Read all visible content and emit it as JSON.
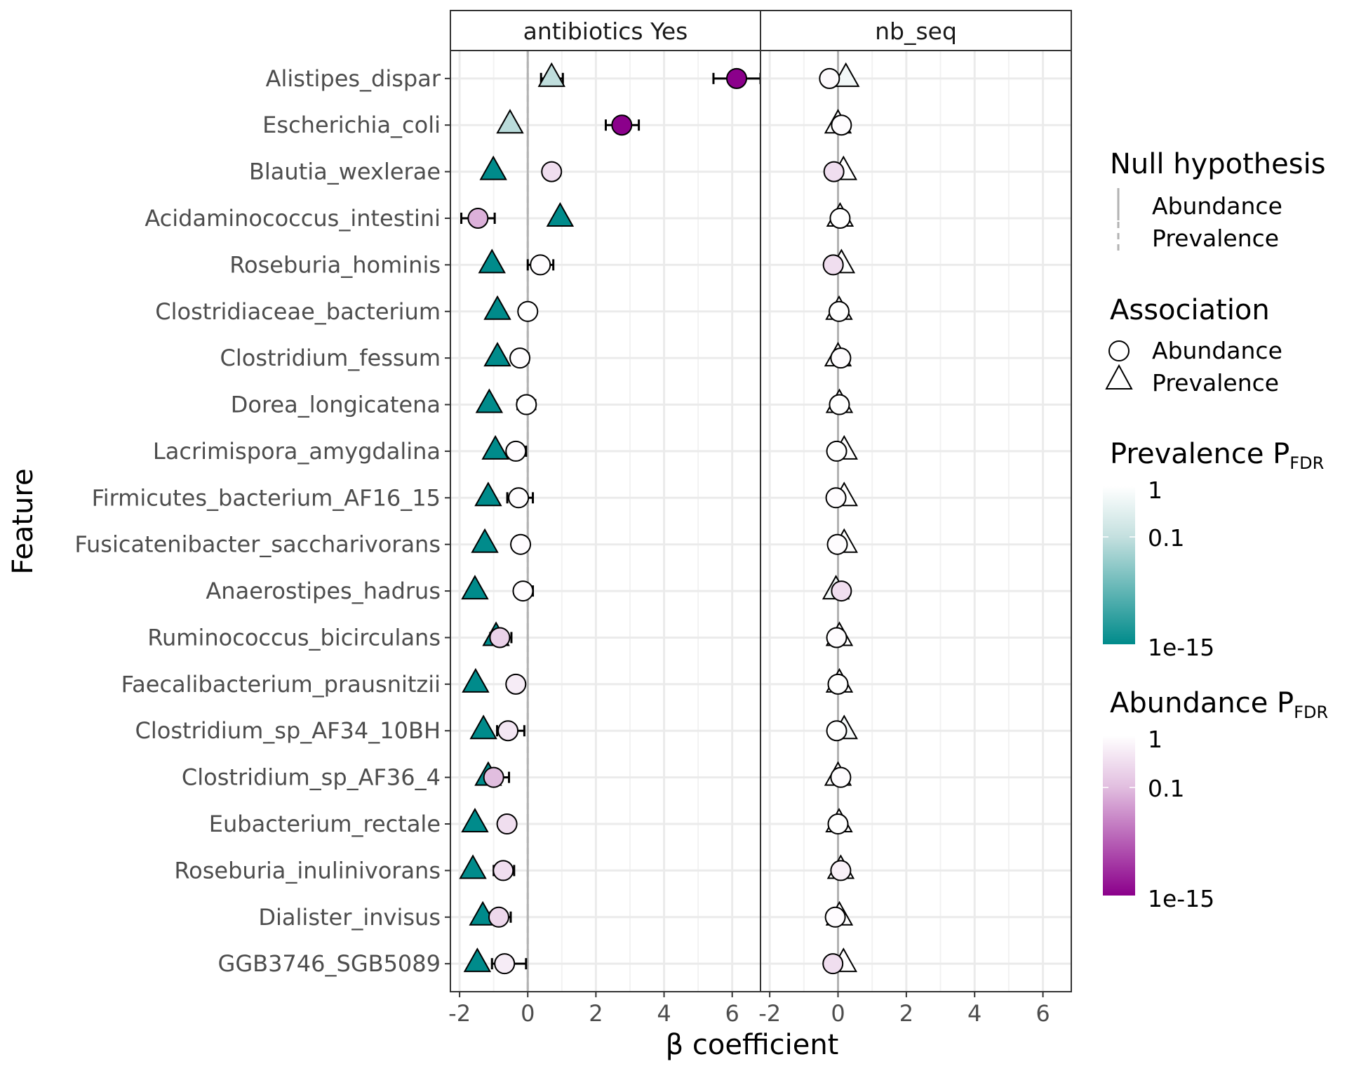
{
  "chart_data": {
    "type": "scatter",
    "title": "",
    "xlabel": "β coefficient",
    "ylabel": "Feature",
    "xlim": [
      -2.27,
      6.83
    ],
    "x_ticks": [
      -2,
      0,
      2,
      4,
      6
    ],
    "x_tick_labels": [
      "-2",
      "0",
      "2",
      "4",
      "6"
    ],
    "grid": true,
    "features": [
      "Alistipes_dispar",
      "Escherichia_coli",
      "Blautia_wexlerae",
      "Acidaminococcus_intestini",
      "Roseburia_hominis",
      "Clostridiaceae_bacterium",
      "Clostridium_fessum",
      "Dorea_longicatena",
      "Lacrimispora_amygdalina",
      "Firmicutes_bacterium_AF16_15",
      "Fusicatenibacter_saccharivorans",
      "Anaerostipes_hadrus",
      "Ruminococcus_bicirculans",
      "Faecalibacterium_prausnitzii",
      "Clostridium_sp_AF34_10BH",
      "Clostridium_sp_AF36_4",
      "Eubacterium_rectale",
      "Roseburia_inulinivorans",
      "Dialister_invisus",
      "GGB3746_SGB5089"
    ],
    "null_hypothesis_lines": [
      {
        "name": "Abundance",
        "x": 0,
        "style": "solid",
        "color": "#b3b3b3"
      },
      {
        "name": "Prevalence",
        "x": 0,
        "style": "dashed",
        "color": "#b3b3b3"
      }
    ],
    "panels": [
      {
        "name": "antibiotics Yes",
        "prevalence": [
          {
            "beta": 0.7,
            "lo": 0.39,
            "hi": 1.03,
            "p_fdr": 0.05
          },
          {
            "beta": -0.52,
            "p_fdr": 0.02
          },
          {
            "beta": -1.01,
            "p_fdr": 1e-15
          },
          {
            "beta": 0.95,
            "p_fdr": 1e-15
          },
          {
            "beta": -1.05,
            "p_fdr": 1e-15
          },
          {
            "beta": -0.89,
            "p_fdr": 1e-15
          },
          {
            "beta": -0.89,
            "p_fdr": 1e-15
          },
          {
            "beta": -1.13,
            "p_fdr": 1e-15
          },
          {
            "beta": -0.95,
            "p_fdr": 1e-15
          },
          {
            "beta": -1.16,
            "p_fdr": 1e-15
          },
          {
            "beta": -1.26,
            "p_fdr": 1e-15
          },
          {
            "beta": -1.55,
            "p_fdr": 1e-15
          },
          {
            "beta": -0.93,
            "p_fdr": 1e-15
          },
          {
            "beta": -1.53,
            "p_fdr": 1e-15
          },
          {
            "beta": -1.3,
            "p_fdr": 1e-15
          },
          {
            "beta": -1.16,
            "p_fdr": 1e-15
          },
          {
            "beta": -1.55,
            "p_fdr": 1e-15
          },
          {
            "beta": -1.61,
            "p_fdr": 1e-15
          },
          {
            "beta": -1.32,
            "p_fdr": 1e-15
          },
          {
            "beta": -1.48,
            "p_fdr": 1e-15
          }
        ],
        "abundance": [
          {
            "beta": 6.13,
            "lo": 5.45,
            "hi": 6.83,
            "p_fdr": 1e-15
          },
          {
            "beta": 2.76,
            "lo": 2.29,
            "hi": 3.26,
            "p_fdr": 1e-15
          },
          {
            "beta": 0.7,
            "p_fdr": 0.3
          },
          {
            "beta": -1.46,
            "lo": -1.95,
            "hi": -0.97,
            "p_fdr": 0.01
          },
          {
            "beta": 0.37,
            "lo": 0.0,
            "hi": 0.75,
            "p_fdr": 0.9
          },
          {
            "beta": 0.0,
            "p_fdr": 1
          },
          {
            "beta": -0.23,
            "lo": -0.4,
            "hi": 0.02,
            "p_fdr": 0.9
          },
          {
            "beta": -0.04,
            "lo": -0.3,
            "hi": 0.22,
            "p_fdr": 1
          },
          {
            "beta": -0.35,
            "lo": -0.55,
            "hi": -0.05,
            "p_fdr": 0.9
          },
          {
            "beta": -0.27,
            "lo": -0.6,
            "hi": 0.15,
            "p_fdr": 0.9
          },
          {
            "beta": -0.21,
            "p_fdr": 0.9
          },
          {
            "beta": -0.14,
            "lo": -0.32,
            "hi": 0.15,
            "p_fdr": 0.9
          },
          {
            "beta": -0.82,
            "lo": -1.1,
            "hi": -0.48,
            "p_fdr": 0.2
          },
          {
            "beta": -0.35,
            "p_fdr": 0.5
          },
          {
            "beta": -0.58,
            "lo": -0.9,
            "hi": -0.1,
            "p_fdr": 0.4
          },
          {
            "beta": -1.0,
            "lo": -1.22,
            "hi": -0.55,
            "p_fdr": 0.08
          },
          {
            "beta": -0.61,
            "lo": -0.75,
            "hi": -0.45,
            "p_fdr": 0.3
          },
          {
            "beta": -0.72,
            "lo": -1.0,
            "hi": -0.4,
            "p_fdr": 0.3
          },
          {
            "beta": -0.85,
            "lo": -1.1,
            "hi": -0.5,
            "p_fdr": 0.25
          },
          {
            "beta": -0.68,
            "lo": -1.05,
            "hi": -0.05,
            "p_fdr": 0.5
          }
        ]
      },
      {
        "name": "nb_seq",
        "prevalence": [
          {
            "beta": 0.23,
            "p_fdr": 0.6
          },
          {
            "beta": 0.0,
            "p_fdr": 1
          },
          {
            "beta": 0.16,
            "p_fdr": 1
          },
          {
            "beta": 0.06,
            "p_fdr": 1
          },
          {
            "beta": 0.1,
            "p_fdr": 1
          },
          {
            "beta": 0.03,
            "p_fdr": 1
          },
          {
            "beta": 0.0,
            "p_fdr": 1
          },
          {
            "beta": 0.04,
            "p_fdr": 1
          },
          {
            "beta": 0.18,
            "p_fdr": 1
          },
          {
            "beta": 0.18,
            "p_fdr": 1
          },
          {
            "beta": 0.18,
            "p_fdr": 1
          },
          {
            "beta": -0.06,
            "p_fdr": 0.6
          },
          {
            "beta": 0.04,
            "p_fdr": 1
          },
          {
            "beta": 0.04,
            "p_fdr": 1
          },
          {
            "beta": 0.18,
            "p_fdr": 0.7
          },
          {
            "beta": 0.0,
            "p_fdr": 1
          },
          {
            "beta": 0.03,
            "p_fdr": 1
          },
          {
            "beta": 0.08,
            "p_fdr": 1
          },
          {
            "beta": 0.04,
            "p_fdr": 1
          },
          {
            "beta": 0.16,
            "p_fdr": 1
          }
        ],
        "abundance": [
          {
            "beta": -0.25,
            "p_fdr": 0.8
          },
          {
            "beta": 0.1,
            "p_fdr": 0.9
          },
          {
            "beta": -0.12,
            "p_fdr": 0.3
          },
          {
            "beta": 0.06,
            "p_fdr": 1
          },
          {
            "beta": -0.14,
            "p_fdr": 0.3
          },
          {
            "beta": 0.03,
            "p_fdr": 1
          },
          {
            "beta": 0.08,
            "p_fdr": 0.9
          },
          {
            "beta": 0.04,
            "p_fdr": 1
          },
          {
            "beta": -0.04,
            "p_fdr": 1
          },
          {
            "beta": -0.06,
            "p_fdr": 0.9
          },
          {
            "beta": -0.02,
            "p_fdr": 0.9
          },
          {
            "beta": 0.1,
            "p_fdr": 0.3
          },
          {
            "beta": -0.04,
            "p_fdr": 0.9
          },
          {
            "beta": 0.0,
            "p_fdr": 1
          },
          {
            "beta": -0.04,
            "p_fdr": 1
          },
          {
            "beta": 0.08,
            "p_fdr": 0.9
          },
          {
            "beta": 0.0,
            "p_fdr": 1
          },
          {
            "beta": 0.08,
            "p_fdr": 0.6
          },
          {
            "beta": -0.08,
            "p_fdr": 0.9
          },
          {
            "beta": -0.15,
            "p_fdr": 0.3
          }
        ]
      }
    ],
    "legends": {
      "null_hypothesis": {
        "title": "Null hypothesis",
        "items": [
          "Abundance",
          "Prevalence"
        ]
      },
      "association": {
        "title": "Association",
        "items": [
          "Abundance",
          "Prevalence"
        ]
      },
      "prevalence_pfdr": {
        "title": "Prevalence P",
        "title_sub": "FDR",
        "ticks": [
          "1",
          "0.1",
          "1e-15"
        ],
        "low_color": "#008b8b",
        "mid_color": "#c4e0df",
        "high_color": "#ffffff"
      },
      "abundance_pfdr": {
        "title": "Abundance P",
        "title_sub": "FDR",
        "ticks": [
          "1",
          "0.1",
          "1e-15"
        ],
        "low_color": "#8b008b",
        "mid_color": "#e2bfe0",
        "high_color": "#ffffff"
      }
    }
  }
}
